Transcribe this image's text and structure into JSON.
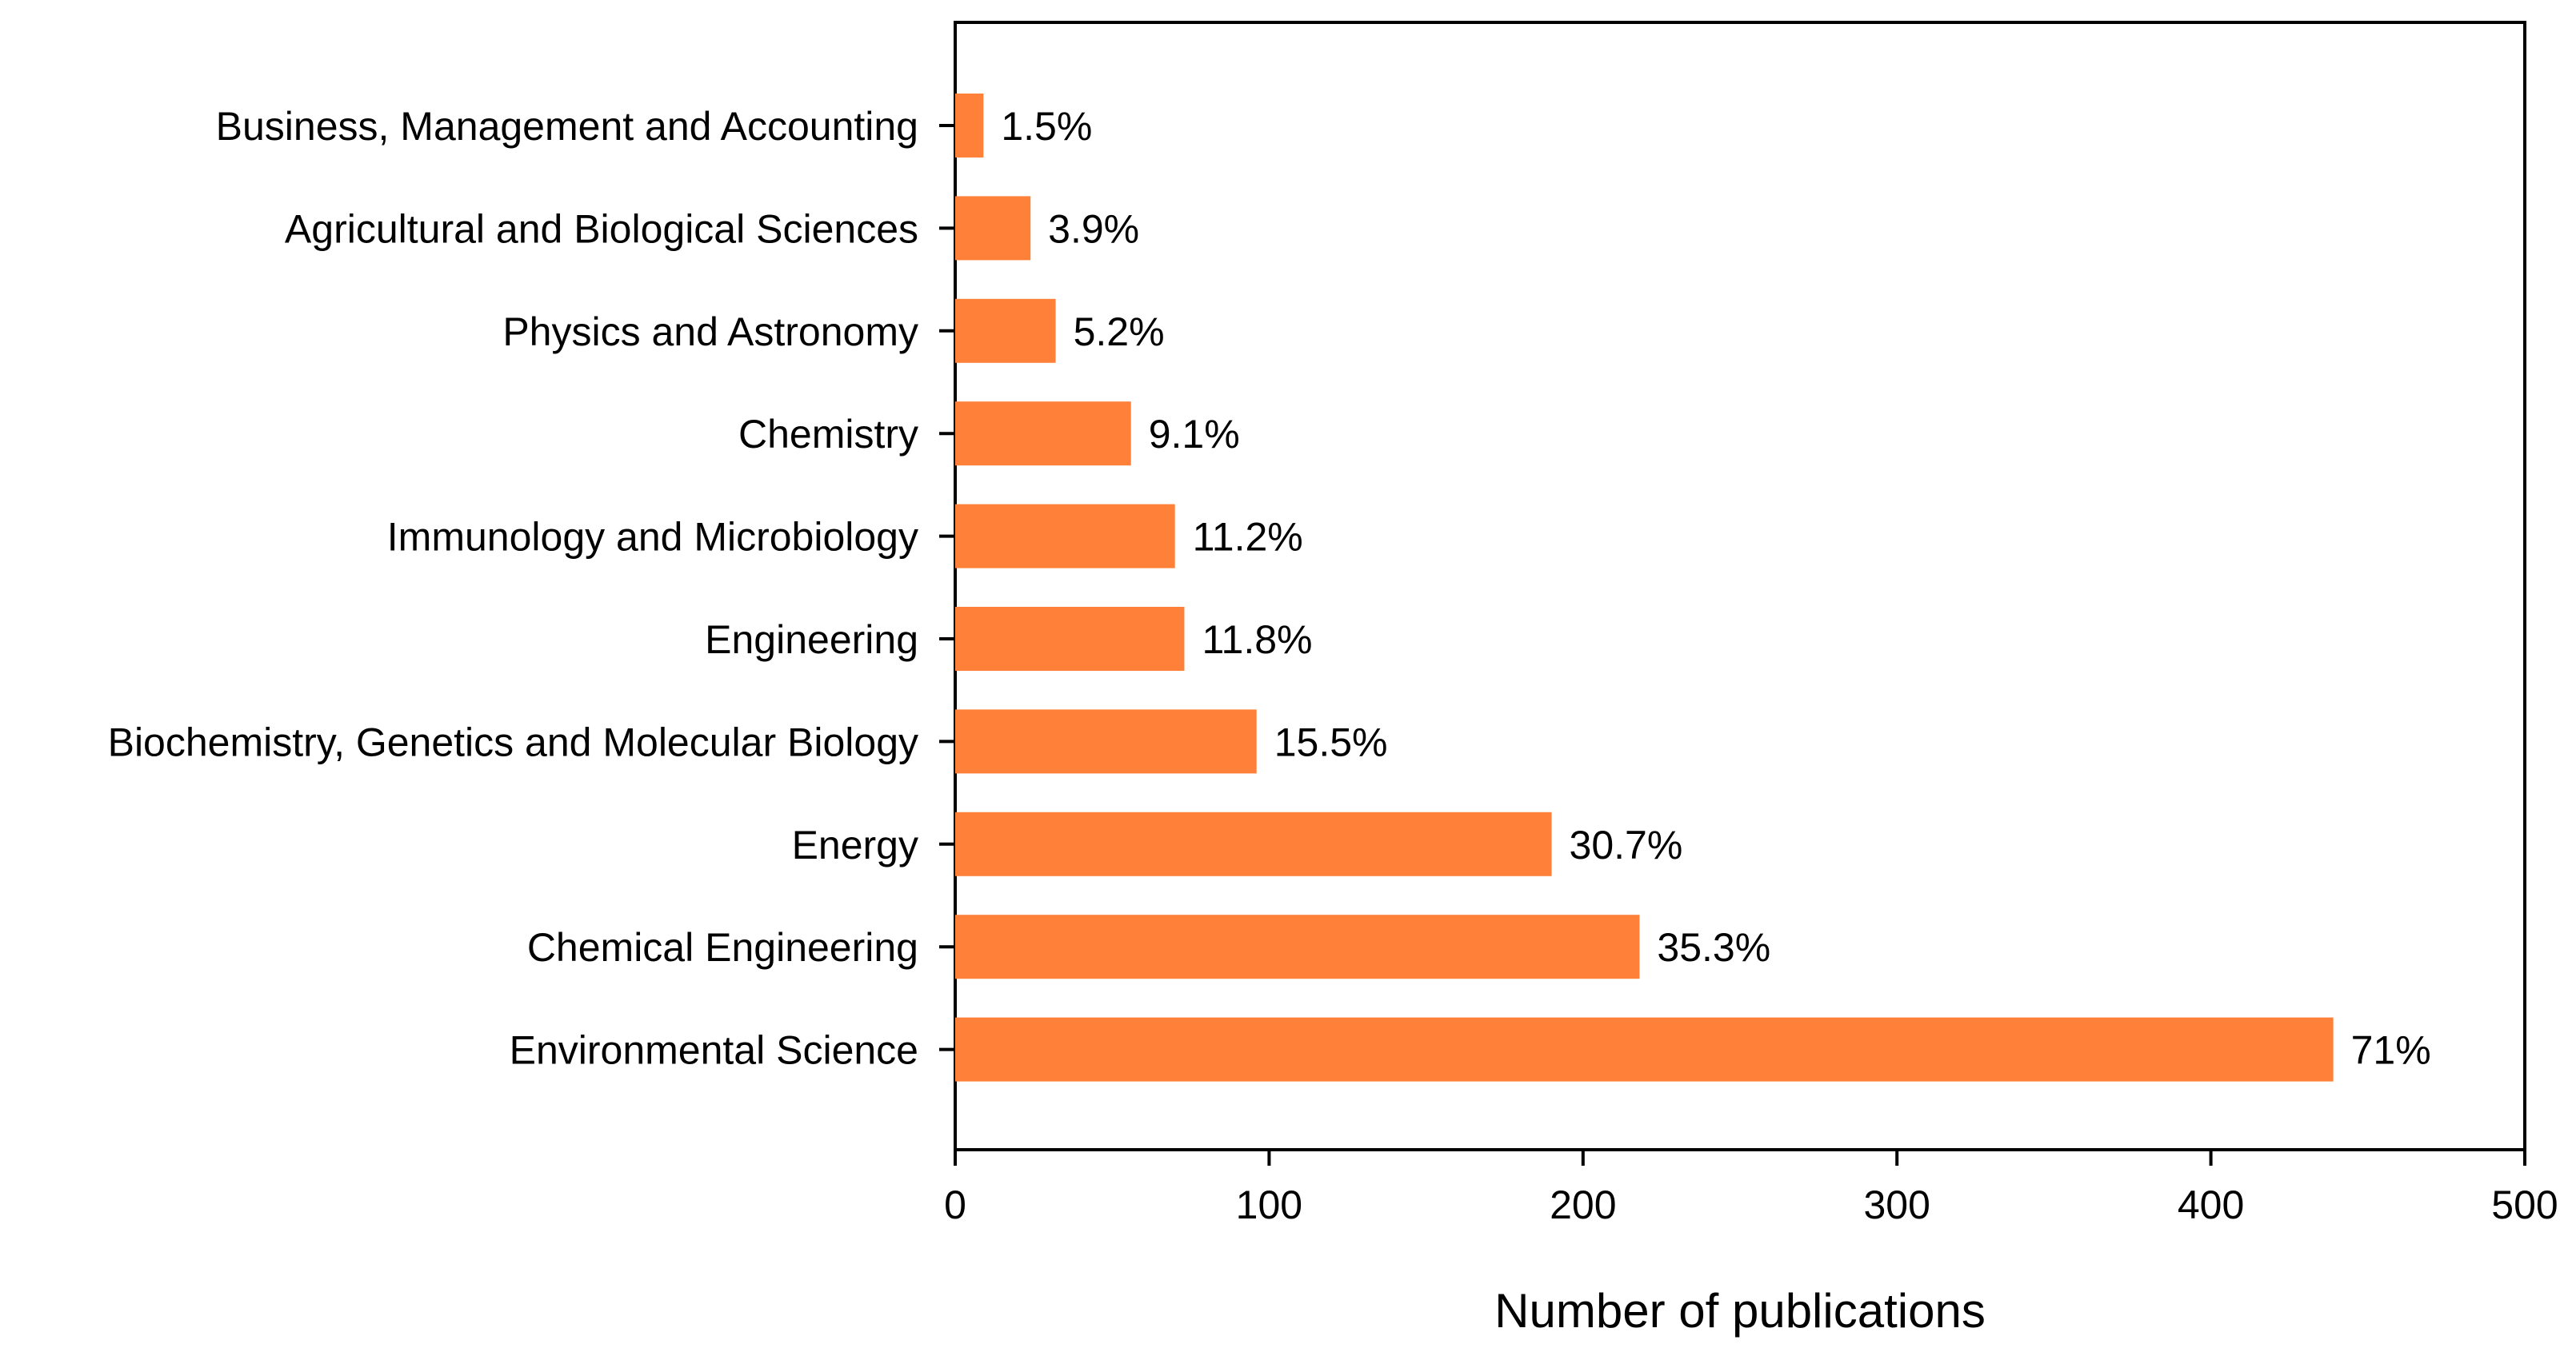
{
  "chart_data": {
    "type": "bar",
    "orientation": "horizontal",
    "title": "",
    "xlabel": "Number of publications",
    "ylabel": "",
    "xlim": [
      0,
      500
    ],
    "xticks": [
      0,
      100,
      200,
      300,
      400,
      500
    ],
    "grid": false,
    "bar_color": "#FF8139",
    "categories": [
      "Business, Management and Accounting",
      "Agricultural and Biological Sciences",
      "Physics and Astronomy",
      "Chemistry",
      "Immunology and Microbiology",
      "Engineering",
      "Biochemistry, Genetics and Molecular Biology",
      "Energy",
      "Chemical Engineering",
      "Environmental Science"
    ],
    "values": [
      9,
      24,
      32,
      56,
      70,
      73,
      96,
      190,
      218,
      439
    ],
    "data_labels": [
      "1.5%",
      "3.9%",
      "5.2%",
      "9.1%",
      "11.2%",
      "11.8%",
      "15.5%",
      "30.7%",
      "35.3%",
      "71%"
    ]
  }
}
